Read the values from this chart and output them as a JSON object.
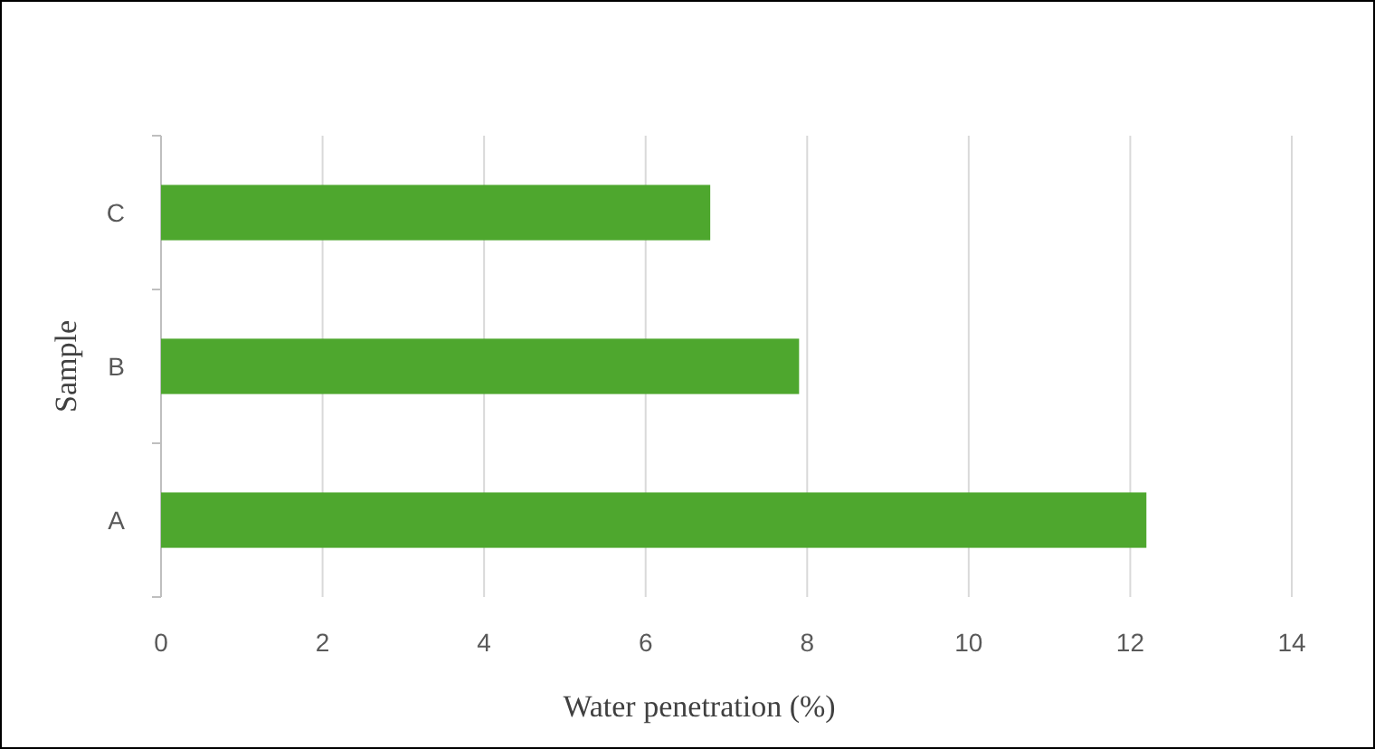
{
  "chart_data": {
    "type": "bar",
    "orientation": "horizontal",
    "xlabel": "Water penetration (%)",
    "ylabel": "Sample",
    "categories": [
      "C",
      "B",
      "A"
    ],
    "values": [
      6.8,
      7.9,
      12.2
    ],
    "color": "#4ea72e",
    "xlim": [
      0,
      14
    ],
    "xticks": [
      0,
      2,
      4,
      6,
      8,
      10,
      12,
      14
    ],
    "grid": "x"
  }
}
